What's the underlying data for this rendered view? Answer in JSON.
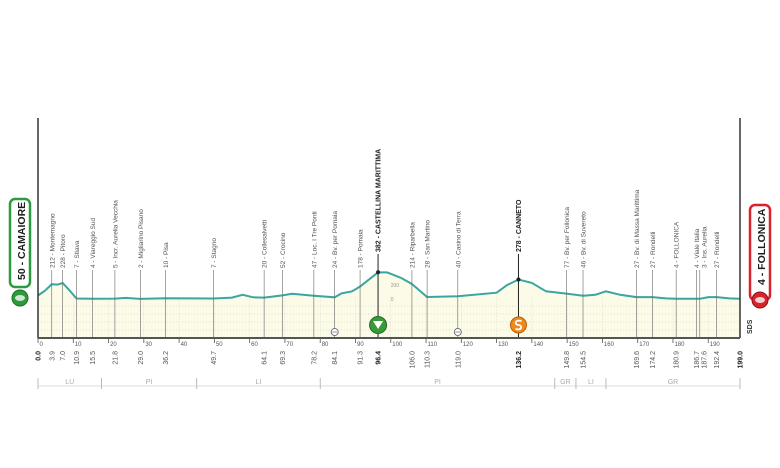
{
  "chart_data": {
    "type": "area",
    "xlim": [
      0,
      199
    ],
    "x_ticks": [
      0,
      10,
      20,
      30,
      40,
      50,
      60,
      70,
      80,
      90,
      100,
      110,
      120,
      130,
      140,
      150,
      160,
      170,
      180,
      190
    ],
    "y_ticks": [
      0,
      200
    ],
    "colors": {
      "line": "#3aa6a0",
      "fill": "#fbfbe8",
      "start": "#2e9a3e",
      "finish": "#d8232a",
      "kom": "#3a9a3a",
      "sprint": "#f08a1c"
    },
    "start": {
      "label": "50 - CAMAIORE",
      "km": "0.0",
      "elevation": 50
    },
    "finish": {
      "label": "4 - FOLLONICA",
      "km": "199.0",
      "elevation": 4
    },
    "brand": "SDS",
    "waypoints": [
      {
        "km": 3.9,
        "km_label": "3.9",
        "label": "212 - Montemagno",
        "elev": 212
      },
      {
        "km": 7.0,
        "km_label": "7.0",
        "label": "228 - Pitoro",
        "elev": 228
      },
      {
        "km": 10.9,
        "km_label": "10.9",
        "label": "7 - Stiava",
        "elev": 7
      },
      {
        "km": 15.5,
        "km_label": "15.5",
        "label": "4 - Viareggio Sud",
        "elev": 4
      },
      {
        "km": 21.8,
        "km_label": "21.8",
        "label": "5 - Incr. Aurelia Vecchia",
        "elev": 5
      },
      {
        "km": 29.0,
        "km_label": "29.0",
        "label": "2 - Migliarino Pisano",
        "elev": 2
      },
      {
        "km": 36.2,
        "km_label": "36.2",
        "label": "10 - Pisa",
        "elev": 10
      },
      {
        "km": 49.7,
        "km_label": "49.7",
        "label": "7 - Stagno",
        "elev": 7
      },
      {
        "km": 64.1,
        "km_label": "64.1",
        "label": "20 - Collesalvetti",
        "elev": 20
      },
      {
        "km": 69.3,
        "km_label": "69.3",
        "label": "52 - Crocino",
        "elev": 52
      },
      {
        "km": 78.2,
        "km_label": "78.2",
        "label": "47 - Loc. I Tre Ponti",
        "elev": 47
      },
      {
        "km": 84.1,
        "km_label": "84.1",
        "label": "24 - Bv. per Pomaia",
        "elev": 24
      },
      {
        "km": 91.3,
        "km_label": "91.3",
        "label": "178 - Pomaia",
        "elev": 178
      },
      {
        "km": 96.4,
        "km_label": "96.4",
        "label": "382 - CASTELLINA MARITTIMA",
        "elev": 382,
        "bold": true,
        "marker": "kom"
      },
      {
        "km": 106.0,
        "km_label": "106.0",
        "label": "214 - Riparbella",
        "elev": 214
      },
      {
        "km": 110.3,
        "km_label": "110.3",
        "label": "28 - San Martino",
        "elev": 28
      },
      {
        "km": 119.0,
        "km_label": "119.0",
        "label": "40 - Casino di Terra",
        "elev": 40
      },
      {
        "km": 136.2,
        "km_label": "136.2",
        "label": "278 - CANNETO",
        "elev": 278,
        "bold": true,
        "marker": "sprint"
      },
      {
        "km": 149.8,
        "km_label": "149.8",
        "label": "77 - Bv. per Follonica",
        "elev": 77
      },
      {
        "km": 154.5,
        "km_label": "154.5",
        "label": "46 - Bv. di Suvereto",
        "elev": 46
      },
      {
        "km": 169.6,
        "km_label": "169.6",
        "label": "27 - Bv. di Massa Marittima",
        "elev": 27
      },
      {
        "km": 174.2,
        "km_label": "174.2",
        "label": "27 - Rondelli",
        "elev": 27
      },
      {
        "km": 180.9,
        "km_label": "180.9",
        "label": "4 - FOLLONICA",
        "elev": 4
      },
      {
        "km": 186.7,
        "km_label": "186.7",
        "label": "4 - Viale Italia",
        "elev": 4
      },
      {
        "km": 187.6,
        "km_label": "187.6",
        "label": "3 - Ins. Aurelia",
        "elev": 3
      },
      {
        "km": 192.4,
        "km_label": "192.4",
        "label": "27 - Rondelli",
        "elev": 27
      }
    ],
    "profile": [
      [
        0,
        50
      ],
      [
        2,
        120
      ],
      [
        3.9,
        212
      ],
      [
        5.5,
        205
      ],
      [
        7,
        228
      ],
      [
        9,
        120
      ],
      [
        10.9,
        7
      ],
      [
        15.5,
        4
      ],
      [
        21.8,
        5
      ],
      [
        25,
        15
      ],
      [
        29,
        2
      ],
      [
        36.2,
        10
      ],
      [
        49.7,
        7
      ],
      [
        55,
        20
      ],
      [
        58,
        60
      ],
      [
        61,
        25
      ],
      [
        64.1,
        20
      ],
      [
        69.3,
        52
      ],
      [
        72,
        75
      ],
      [
        78.2,
        47
      ],
      [
        84.1,
        24
      ],
      [
        86,
        80
      ],
      [
        89,
        110
      ],
      [
        91.3,
        178
      ],
      [
        96.4,
        382
      ],
      [
        99,
        380
      ],
      [
        103,
        300
      ],
      [
        106,
        214
      ],
      [
        110.3,
        28
      ],
      [
        119,
        40
      ],
      [
        130,
        90
      ],
      [
        133,
        200
      ],
      [
        136.2,
        278
      ],
      [
        140,
        230
      ],
      [
        144,
        110
      ],
      [
        149.8,
        77
      ],
      [
        154.5,
        46
      ],
      [
        158,
        60
      ],
      [
        161,
        110
      ],
      [
        165,
        60
      ],
      [
        169.6,
        27
      ],
      [
        174.2,
        27
      ],
      [
        178,
        8
      ],
      [
        180.9,
        4
      ],
      [
        186.7,
        4
      ],
      [
        187.6,
        3
      ],
      [
        190,
        27
      ],
      [
        192.4,
        27
      ],
      [
        196,
        8
      ],
      [
        199,
        4
      ]
    ],
    "feed_zones": [
      84.1,
      119.0
    ],
    "regions": [
      {
        "label": "LU",
        "from": 0,
        "to": 18
      },
      {
        "label": "PI",
        "from": 18,
        "to": 45
      },
      {
        "label": "LI",
        "from": 45,
        "to": 80
      },
      {
        "label": "PI",
        "from": 80,
        "to": 146.5
      },
      {
        "label": "GR",
        "from": 146.5,
        "to": 152.5
      },
      {
        "label": "LI",
        "from": 152.5,
        "to": 161
      },
      {
        "label": "GR",
        "from": 161,
        "to": 199
      }
    ]
  }
}
